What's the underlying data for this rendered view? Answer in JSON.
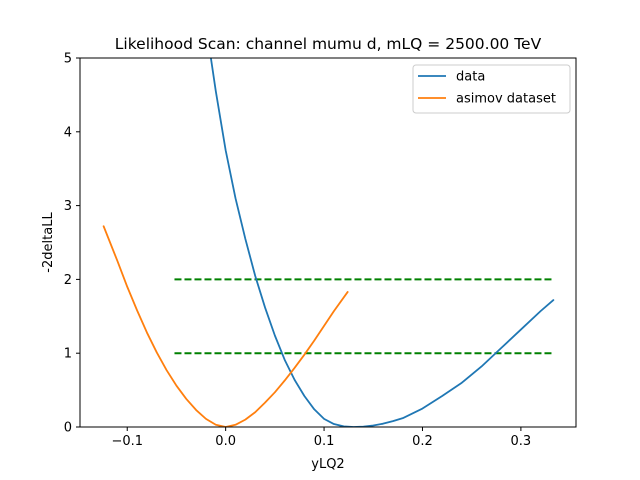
{
  "chart_data": {
    "type": "line",
    "title": "Likelihood Scan: channel mumu d, mLQ = 2500.00 TeV",
    "xlabel": "yLQ2",
    "ylabel": "-2deltaLL",
    "xlim": [
      -0.148,
      0.356
    ],
    "ylim": [
      0,
      5
    ],
    "xticks": [
      -0.1,
      0.0,
      0.1,
      0.2,
      0.3
    ],
    "xtick_labels": [
      "−0.1",
      "0.0",
      "0.1",
      "0.2",
      "0.3"
    ],
    "yticks": [
      0,
      1,
      2,
      3,
      4,
      5
    ],
    "ytick_labels": [
      "0",
      "1",
      "2",
      "3",
      "4",
      "5"
    ],
    "grid": false,
    "legend_position": "top-right",
    "series": [
      {
        "name": "data",
        "color": "#1f77b4",
        "x": [
          -0.015,
          -0.01,
          0.0,
          0.01,
          0.02,
          0.03,
          0.04,
          0.05,
          0.06,
          0.07,
          0.08,
          0.09,
          0.1,
          0.11,
          0.12,
          0.13,
          0.14,
          0.15,
          0.16,
          0.17,
          0.18,
          0.2,
          0.22,
          0.24,
          0.26,
          0.28,
          0.3,
          0.32,
          0.333
        ],
        "y": [
          5.0,
          4.55,
          3.75,
          3.1,
          2.55,
          2.05,
          1.62,
          1.24,
          0.91,
          0.64,
          0.42,
          0.24,
          0.11,
          0.04,
          0.008,
          0.0,
          0.005,
          0.02,
          0.045,
          0.08,
          0.12,
          0.25,
          0.42,
          0.6,
          0.82,
          1.07,
          1.32,
          1.57,
          1.72
        ]
      },
      {
        "name": "asimov dataset",
        "color": "#ff7f0e",
        "x": [
          -0.124,
          -0.11,
          -0.1,
          -0.09,
          -0.08,
          -0.07,
          -0.06,
          -0.05,
          -0.04,
          -0.03,
          -0.02,
          -0.01,
          0.0,
          0.01,
          0.02,
          0.03,
          0.04,
          0.05,
          0.06,
          0.07,
          0.08,
          0.09,
          0.1,
          0.11,
          0.124
        ],
        "y": [
          2.72,
          2.25,
          1.9,
          1.58,
          1.28,
          1.01,
          0.77,
          0.56,
          0.38,
          0.23,
          0.11,
          0.03,
          0.0,
          0.03,
          0.1,
          0.2,
          0.33,
          0.47,
          0.63,
          0.8,
          0.98,
          1.17,
          1.37,
          1.57,
          1.83
        ]
      }
    ],
    "reference_lines": [
      {
        "y": 1,
        "x_range": [
          -0.052,
          0.333
        ],
        "color": "#008000",
        "style": "dashed"
      },
      {
        "y": 2,
        "x_range": [
          -0.052,
          0.333
        ],
        "color": "#008000",
        "style": "dashed"
      }
    ]
  }
}
